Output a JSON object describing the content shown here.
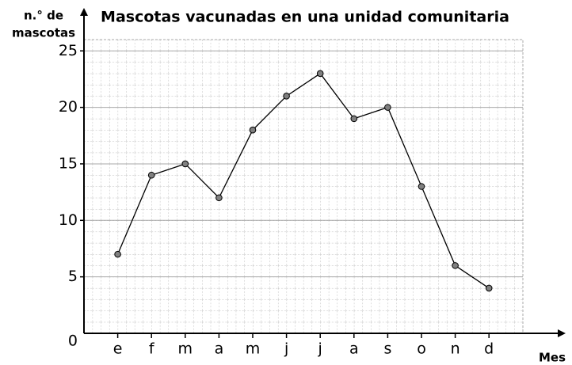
{
  "chart_data": {
    "type": "line",
    "title": "Mascotas vacunadas en una unidad comunitaria",
    "ylabel": [
      "n.° de",
      "mascotas"
    ],
    "xlabel": "Mes",
    "categories": [
      "e",
      "f",
      "m",
      "a",
      "m",
      "j",
      "j",
      "a",
      "s",
      "o",
      "n",
      "d"
    ],
    "values": [
      7,
      14,
      15,
      12,
      18,
      21,
      23,
      19,
      20,
      13,
      6,
      4
    ],
    "color": "#000000",
    "marker_color": "#808080",
    "ylim": [
      0,
      26
    ],
    "yticks": [
      0,
      5,
      10,
      15,
      20,
      25
    ],
    "grid": true
  }
}
